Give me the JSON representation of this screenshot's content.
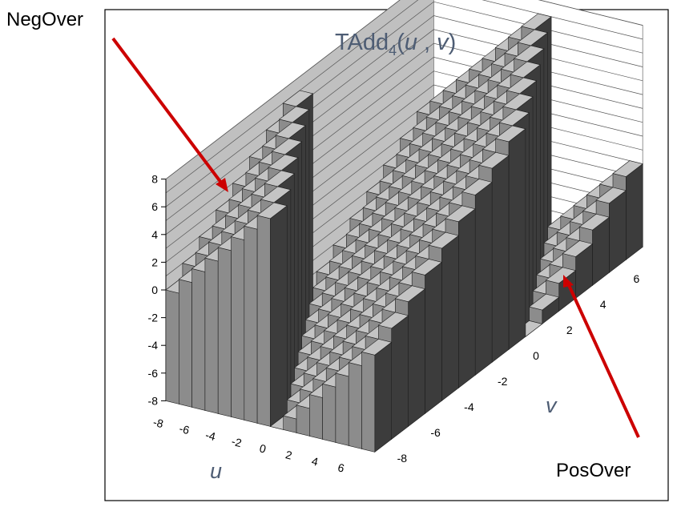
{
  "annotations": {
    "neg_label": "NegOver",
    "pos_label": "PosOver",
    "arrow_color": "#cc0000"
  },
  "chart_data": {
    "type": "bar3d",
    "title": {
      "main": "TAdd",
      "subscript": "4",
      "args_open": "(",
      "u": "u",
      "sep": " , ",
      "v": "v",
      "args_close": ")"
    },
    "xlabel": "u",
    "ylabel": "v",
    "x": [
      -8,
      -7,
      -6,
      -5,
      -4,
      -3,
      -2,
      -1,
      0,
      1,
      2,
      3,
      4,
      5,
      6,
      7
    ],
    "y": [
      -8,
      -7,
      -6,
      -5,
      -4,
      -3,
      -2,
      -1,
      0,
      1,
      2,
      3,
      4,
      5,
      6,
      7
    ],
    "z_formula": "4-bit two's complement addition: z = u + v, wrapped to [-8, 7]",
    "zlim": [
      -8,
      8
    ],
    "z_ticks": [
      "8",
      "6",
      "4",
      "2",
      "0",
      "-2",
      "-4",
      "-6",
      "-8"
    ],
    "u_ticks": [
      "-8",
      "-6",
      "-4",
      "-2",
      "0",
      "2",
      "4",
      "6"
    ],
    "v_ticks": [
      "-8",
      "-6",
      "-4",
      "-2",
      "0",
      "2",
      "4",
      "6"
    ],
    "grid": true,
    "colors": {
      "side": "#3c3c3c",
      "front": "#8c8c8c",
      "top": "#c4c4c4",
      "wall": "#c0c0c0",
      "floor": "#ffffff"
    }
  }
}
